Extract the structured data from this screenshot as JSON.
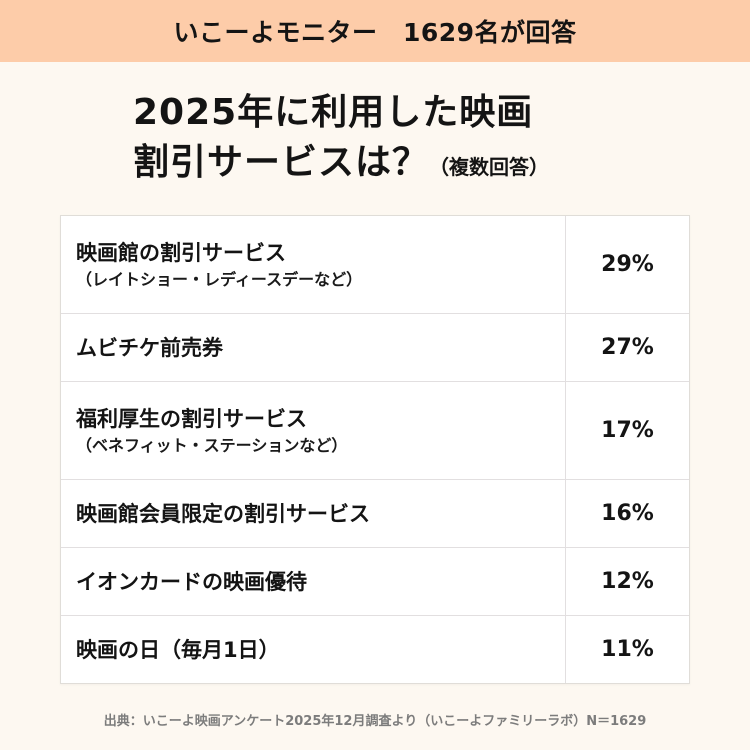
{
  "banner": {
    "text": "いこーよモニター　1629名が回答"
  },
  "title": {
    "line1": "2025年に利用した映画",
    "line2": "割引サービスは？",
    "sub": "（複数回答）"
  },
  "table": {
    "rows": [
      {
        "label": "映画館の割引サービス",
        "sublabel": "（レイトショー・レディースデーなど）",
        "value": "29%"
      },
      {
        "label": "ムビチケ前売券",
        "sublabel": "",
        "value": "27%"
      },
      {
        "label": "福利厚生の割引サービス",
        "sublabel": "（ベネフィット・ステーションなど）",
        "value": "17%"
      },
      {
        "label": "映画館会員限定の割引サービス",
        "sublabel": "",
        "value": "16%"
      },
      {
        "label": "イオンカードの映画優待",
        "sublabel": "",
        "value": "12%"
      },
      {
        "label": "映画の日（毎月1日）",
        "sublabel": "",
        "value": "11%"
      }
    ]
  },
  "footer": {
    "text": "出典：いこーよ映画アンケート2025年12月調査より（いこーよファミリーラボ）N＝1629"
  },
  "colors": {
    "banner_bg": "#fdcca9",
    "page_bg": "#fdf8f1",
    "table_bg": "#ffffff",
    "text": "#141414",
    "footer_text": "#7c7c7c"
  },
  "chart_data": {
    "type": "table",
    "title": "2025年に利用した映画割引サービスは？（複数回答）",
    "subtitle": "いこーよモニター 1629名が回答",
    "categories": [
      "映画館の割引サービス（レイトショー・レディースデーなど）",
      "ムビチケ前売券",
      "福利厚生の割引サービス（ベネフィット・ステーションなど）",
      "映画館会員限定の割引サービス",
      "イオンカードの映画優待",
      "映画の日（毎月1日）"
    ],
    "values": [
      29,
      27,
      17,
      16,
      12,
      11
    ],
    "unit": "%",
    "n": 1629,
    "source": "出典：いこーよ映画アンケート2025年12月調査より（いこーよファミリーラボ）N＝1629"
  }
}
